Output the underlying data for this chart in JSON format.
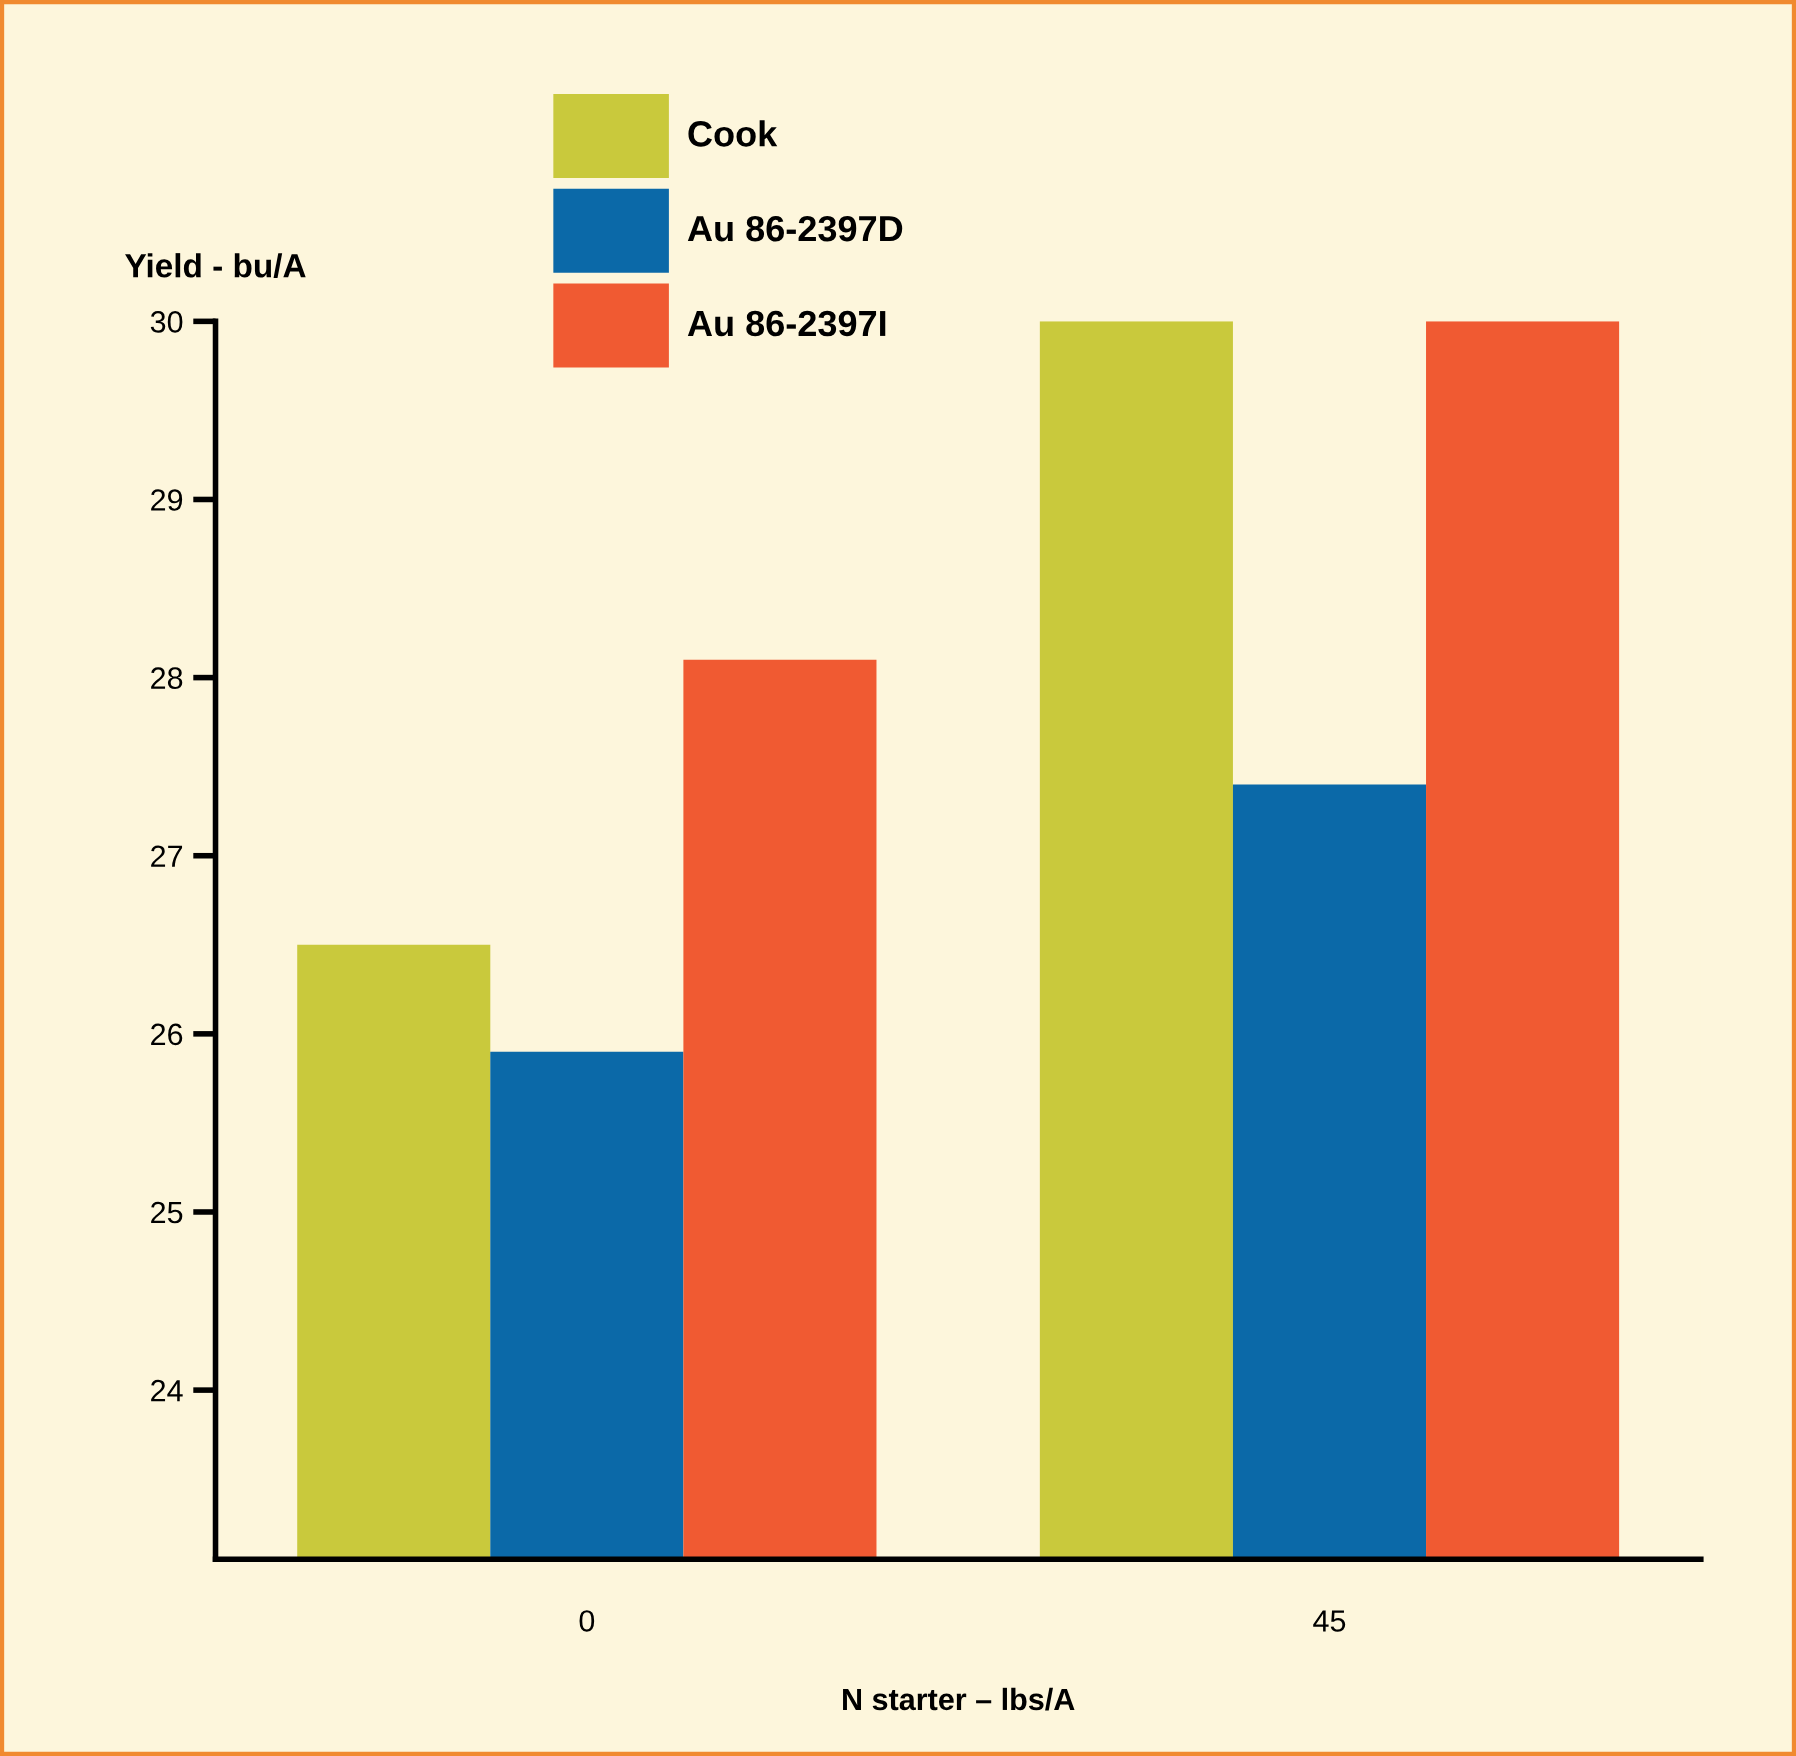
{
  "chart_data": {
    "type": "bar",
    "ylabel": "Yield - bu/A",
    "xlabel": "N starter – lbs/A",
    "categories": [
      "0",
      "45"
    ],
    "series": [
      {
        "name": "Cook",
        "color": "#c9c93c",
        "values": [
          26.5,
          30.0
        ]
      },
      {
        "name": "Au 86-2397D",
        "color": "#0b69a8",
        "values": [
          25.9,
          27.4
        ]
      },
      {
        "name": "Au 86-2397I",
        "color": "#f05a32",
        "values": [
          28.1,
          30.0
        ]
      }
    ],
    "ylim": [
      23.05,
      30
    ],
    "yticks": [
      24,
      25,
      26,
      27,
      28,
      29,
      30
    ],
    "grid": false,
    "legend": "top"
  }
}
